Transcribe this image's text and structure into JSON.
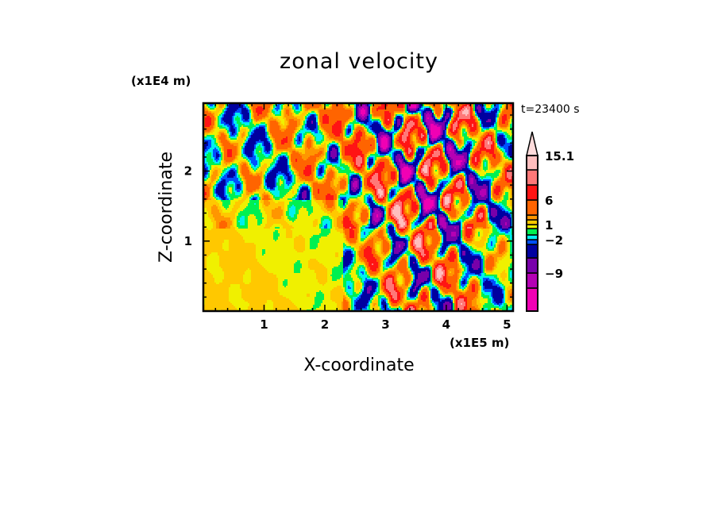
{
  "chart_data": {
    "type": "heatmap",
    "title": "zonal velocity",
    "xlabel": "X-coordinate",
    "ylabel": "Z-coordinate",
    "x_unit": "(x1E5 m)",
    "z_unit": "(x1E4 m)",
    "time_label": "t=23400 s",
    "xlim": [
      0,
      5.1
    ],
    "zlim": [
      0,
      2.97
    ],
    "x_ticks": [
      "1",
      "2",
      "3",
      "4",
      "5"
    ],
    "x_tick_values": [
      1,
      2,
      3,
      4,
      5
    ],
    "z_ticks": [
      "1",
      "2"
    ],
    "z_tick_values": [
      1,
      2
    ],
    "colorbar": {
      "levels": [
        -15,
        -12,
        -9,
        -6,
        -3,
        -2,
        -1,
        0,
        1,
        2,
        3,
        6,
        9,
        12,
        15.1
      ],
      "labels": [
        "15.1",
        "6",
        "1",
        "-2",
        "-9"
      ],
      "label_values": [
        15.1,
        6,
        1,
        -2,
        -9
      ],
      "colors": [
        "#f000b4",
        "#b400b4",
        "#7800aa",
        "#0000a0",
        "#0050ff",
        "#00f0f0",
        "#00f050",
        "#f0f000",
        "#ffc800",
        "#ff9600",
        "#ff6400",
        "#ff1414",
        "#ff7878",
        "#ffbebe"
      ],
      "extend_color": "#ffdcdc"
    }
  }
}
